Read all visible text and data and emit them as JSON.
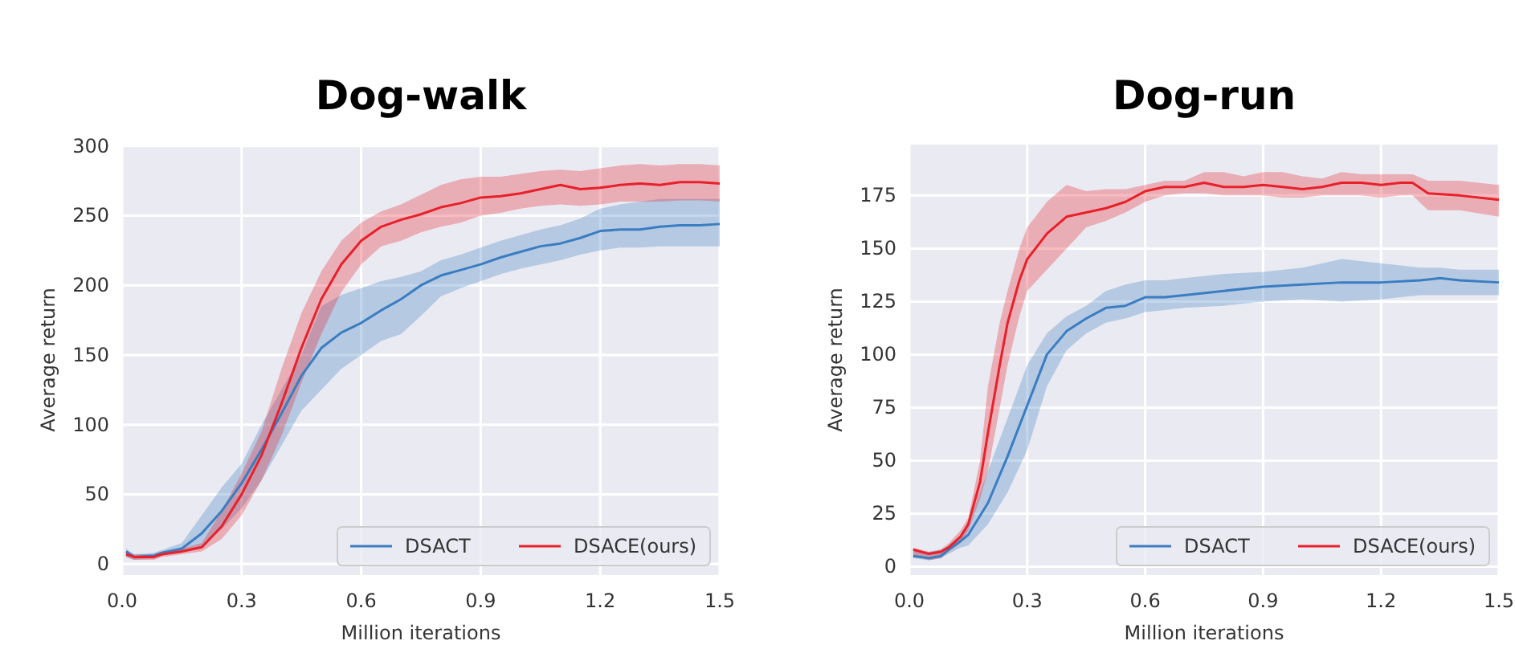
{
  "chart_data": [
    {
      "type": "line",
      "title": "Dog-walk",
      "xlabel": "Million iterations",
      "ylabel": "Average return",
      "xlim": [
        0,
        1.5
      ],
      "xticks": [
        {
          "value": 0,
          "label": "0.0"
        },
        0.3,
        0.6,
        0.9,
        1.2,
        1.5
      ],
      "ylim": [
        -8,
        301
      ],
      "yticks": [
        0,
        50,
        100,
        150,
        200,
        250,
        300
      ],
      "grid": true,
      "legend": "bottom right",
      "series": [
        {
          "name": "DSACT",
          "color": "#3a7dc1",
          "x": [
            0.01,
            0.03,
            0.08,
            0.1,
            0.15,
            0.2,
            0.25,
            0.3,
            0.35,
            0.4,
            0.45,
            0.5,
            0.55,
            0.6,
            0.65,
            0.7,
            0.75,
            0.8,
            0.85,
            0.9,
            0.95,
            1.0,
            1.05,
            1.1,
            1.15,
            1.2,
            1.25,
            1.3,
            1.35,
            1.4,
            1.45,
            1.5
          ],
          "values": [
            9,
            5,
            6,
            8,
            11,
            22,
            38,
            58,
            82,
            108,
            135,
            155,
            166,
            173,
            182,
            190,
            200,
            207,
            211,
            215,
            220,
            224,
            228,
            230,
            234,
            239,
            240,
            240,
            242,
            243,
            243,
            244
          ],
          "lower": [
            5,
            3,
            4,
            6,
            8,
            12,
            25,
            40,
            60,
            85,
            110,
            125,
            140,
            150,
            160,
            165,
            178,
            192,
            198,
            203,
            208,
            212,
            215,
            218,
            222,
            225,
            227,
            227,
            228,
            228,
            228,
            228
          ],
          "upper": [
            11,
            7,
            8,
            10,
            15,
            35,
            55,
            72,
            100,
            125,
            150,
            185,
            193,
            198,
            203,
            206,
            210,
            218,
            222,
            227,
            232,
            236,
            240,
            243,
            248,
            255,
            258,
            260,
            262,
            262,
            262,
            262
          ]
        },
        {
          "name": "DSACE(ours)",
          "color": "#e8202a",
          "x": [
            0.01,
            0.03,
            0.08,
            0.1,
            0.15,
            0.2,
            0.25,
            0.3,
            0.35,
            0.4,
            0.45,
            0.5,
            0.55,
            0.6,
            0.65,
            0.7,
            0.75,
            0.8,
            0.85,
            0.9,
            0.95,
            1.0,
            1.05,
            1.1,
            1.15,
            1.2,
            1.25,
            1.3,
            1.35,
            1.4,
            1.45,
            1.5
          ],
          "values": [
            7,
            5,
            5,
            7,
            9,
            12,
            27,
            50,
            78,
            115,
            155,
            190,
            215,
            232,
            242,
            247,
            251,
            256,
            259,
            263,
            264,
            266,
            269,
            272,
            269,
            270,
            272,
            273,
            272,
            274,
            274,
            273
          ],
          "lower": [
            5,
            3,
            3,
            5,
            7,
            9,
            18,
            35,
            60,
            92,
            130,
            165,
            195,
            215,
            228,
            232,
            238,
            242,
            245,
            250,
            252,
            255,
            257,
            258,
            257,
            258,
            260,
            260,
            260,
            261,
            261,
            260
          ],
          "upper": [
            9,
            7,
            7,
            9,
            11,
            15,
            38,
            65,
            95,
            140,
            180,
            210,
            232,
            245,
            253,
            258,
            265,
            272,
            276,
            278,
            278,
            280,
            282,
            283,
            282,
            284,
            286,
            287,
            286,
            287,
            287,
            286
          ]
        }
      ]
    },
    {
      "type": "line",
      "title": "Dog-run",
      "xlabel": "Million iterations",
      "ylabel": "Average return",
      "xlim": [
        0,
        1.5
      ],
      "xticks": [
        {
          "value": 0,
          "label": "0.0"
        },
        0.3,
        0.6,
        0.9,
        1.2,
        1.5
      ],
      "ylim": [
        -4,
        199
      ],
      "yticks": [
        0,
        25,
        50,
        75,
        100,
        125,
        150,
        175
      ],
      "grid": true,
      "legend": "bottom right",
      "series": [
        {
          "name": "DSACT",
          "color": "#3a7dc1",
          "x": [
            0.01,
            0.05,
            0.08,
            0.1,
            0.13,
            0.15,
            0.2,
            0.25,
            0.3,
            0.35,
            0.4,
            0.45,
            0.5,
            0.55,
            0.6,
            0.65,
            0.7,
            0.8,
            0.9,
            1.0,
            1.1,
            1.2,
            1.3,
            1.35,
            1.4,
            1.5
          ],
          "values": [
            5,
            4,
            5,
            8,
            12,
            15,
            30,
            52,
            76,
            100,
            111,
            117,
            122,
            123,
            127,
            127,
            128,
            130,
            132,
            133,
            134,
            134,
            135,
            136,
            135,
            134
          ],
          "lower": [
            4,
            3,
            4,
            6,
            9,
            10,
            20,
            35,
            55,
            85,
            102,
            110,
            115,
            117,
            120,
            121,
            122,
            123,
            125,
            126,
            125,
            126,
            128,
            128,
            128,
            128
          ],
          "upper": [
            8,
            7,
            8,
            10,
            15,
            20,
            45,
            70,
            95,
            110,
            118,
            123,
            130,
            133,
            135,
            135,
            136,
            138,
            139,
            141,
            145,
            143,
            141,
            141,
            140,
            140
          ]
        },
        {
          "name": "DSACE(ours)",
          "color": "#e8202a",
          "x": [
            0.01,
            0.05,
            0.08,
            0.1,
            0.13,
            0.15,
            0.18,
            0.2,
            0.23,
            0.25,
            0.28,
            0.3,
            0.35,
            0.4,
            0.45,
            0.5,
            0.55,
            0.6,
            0.65,
            0.7,
            0.75,
            0.8,
            0.85,
            0.9,
            0.95,
            1.0,
            1.05,
            1.1,
            1.15,
            1.2,
            1.25,
            1.28,
            1.32,
            1.4,
            1.5
          ],
          "values": [
            8,
            6,
            7,
            9,
            14,
            20,
            40,
            63,
            95,
            115,
            135,
            145,
            157,
            165,
            167,
            169,
            172,
            177,
            179,
            179,
            181,
            179,
            179,
            180,
            179,
            178,
            179,
            181,
            181,
            180,
            181,
            181,
            176,
            175,
            173
          ],
          "lower": [
            5,
            3,
            4,
            7,
            11,
            17,
            32,
            45,
            75,
            95,
            118,
            130,
            140,
            150,
            160,
            163,
            167,
            172,
            175,
            176,
            176,
            175,
            175,
            175,
            174,
            174,
            175,
            175,
            175,
            174,
            175,
            175,
            168,
            168,
            165
          ],
          "upper": [
            9,
            7,
            8,
            11,
            17,
            23,
            50,
            85,
            115,
            130,
            150,
            160,
            172,
            180,
            177,
            178,
            178,
            180,
            182,
            182,
            186,
            186,
            184,
            186,
            186,
            184,
            183,
            186,
            185,
            185,
            185,
            185,
            182,
            182,
            180
          ]
        }
      ]
    }
  ]
}
